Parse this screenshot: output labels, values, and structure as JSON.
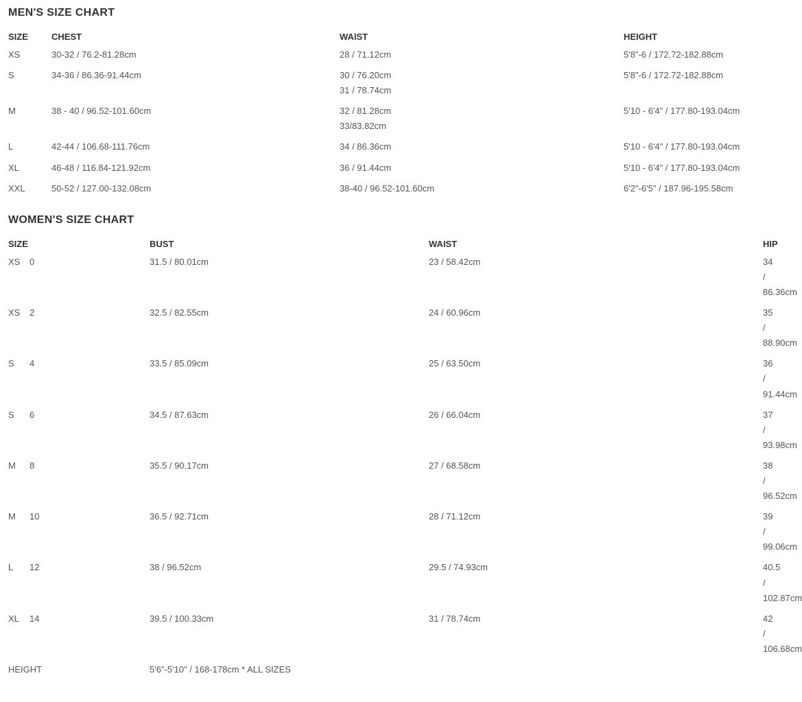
{
  "mens": {
    "title": "MEN'S SIZE CHART",
    "columns": [
      "SIZE",
      "CHEST",
      "WAIST",
      "HEIGHT"
    ],
    "rows": [
      {
        "size": "XS",
        "chest": "30-32 / 76.2-81.28cm",
        "waist": "28 / 71.12cm",
        "height": "5'8\"-6 / 172.72-182.88cm"
      },
      {
        "size": "S",
        "chest": "34-36 / 86.36-91.44cm",
        "waist": "30 / 76.20cm\n31 / 78.74cm",
        "height": "5'8\"-6 / 172.72-182.88cm"
      },
      {
        "size": "M",
        "chest": "38 - 40 / 96.52-101.60cm",
        "waist": "32 / 81.28cm\n33/83.82cm",
        "height": "5'10 - 6'4\" / 177.80-193.04cm"
      },
      {
        "size": "L",
        "chest": "42-44 / 106.68-111.76cm",
        "waist": "34 / 86.36cm",
        "height": "5'10 - 6'4\" / 177.80-193.04cm"
      },
      {
        "size": "XL",
        "chest": "46-48 / 116.84-121.92cm",
        "waist": "36 / 91.44cm",
        "height": "5'10 - 6'4\" / 177.80-193.04cm"
      },
      {
        "size": "XXL",
        "chest": "50-52 / 127.00-132.08cm",
        "waist": "38-40 / 96.52-101.60cm",
        "height": "6'2\"-6'5\" / 187.96-195.58cm"
      }
    ]
  },
  "womens": {
    "title": "WOMEN'S SIZE CHART",
    "columns": [
      "SIZE",
      "",
      "BUST",
      "WAIST",
      "HIP"
    ],
    "rows": [
      {
        "size1": "XS",
        "size2": "0",
        "bust": "31.5 / 80.01cm",
        "waist": "23 / 58.42cm",
        "hip": "34 / 86.36cm"
      },
      {
        "size1": "XS",
        "size2": "2",
        "bust": "32.5 / 82.55cm",
        "waist": "24 / 60.96cm",
        "hip": "35 / 88.90cm"
      },
      {
        "size1": "S",
        "size2": "4",
        "bust": "33.5 / 85.09cm",
        "waist": "25 / 63.50cm",
        "hip": "36 / 91.44cm"
      },
      {
        "size1": "S",
        "size2": "6",
        "bust": "34.5 / 87.63cm",
        "waist": "26 / 66.04cm",
        "hip": "37 / 93.98cm"
      },
      {
        "size1": "M",
        "size2": "8",
        "bust": "35.5 / 90.17cm",
        "waist": "27 / 68.58cm",
        "hip": "38 / 96.52cm"
      },
      {
        "size1": "M",
        "size2": "10",
        "bust": "36.5 / 92.71cm",
        "waist": "28 / 71.12cm",
        "hip": "39 / 99.06cm"
      },
      {
        "size1": "L",
        "size2": "12",
        "bust": "38 / 96.52cm",
        "waist": "29.5 / 74.93cm",
        "hip": "40.5 / 102.87cm"
      },
      {
        "size1": "XL",
        "size2": "14",
        "bust": "39.5 / 100.33cm",
        "waist": "31 / 78.74cm",
        "hip": "42 / 106.68cm"
      }
    ],
    "footer": {
      "label": "HEIGHT",
      "value": "5'6\"-5'10\" / 168-178cm * ALL SIZES"
    }
  },
  "style": {
    "background_color": "#ffffff",
    "heading_color": "#333333",
    "text_color": "#555555",
    "header_fontsize": 13,
    "cell_fontsize": 13,
    "title_fontsize": 16
  }
}
